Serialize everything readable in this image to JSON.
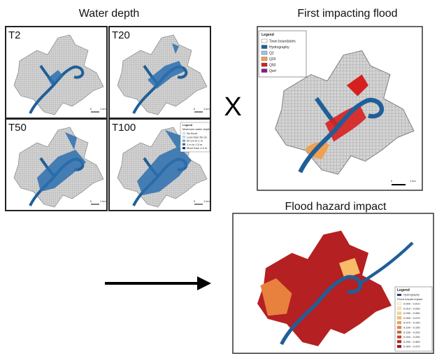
{
  "water_depth": {
    "title": "Water depth",
    "panels": [
      "T2",
      "T20",
      "T50",
      "T100"
    ],
    "legend": {
      "title": "Legend",
      "subtitle": "Maximum water depth",
      "items": [
        {
          "label": "No flood",
          "color": "#e6e6e6"
        },
        {
          "label": "Less than 50 cm",
          "color": "#c6dbef"
        },
        {
          "label": "50 cm to 1 m",
          "color": "#6baed6"
        },
        {
          "label": "1 m to 1.5 m",
          "color": "#2171b5"
        },
        {
          "label": "More than 1.5 m",
          "color": "#08306b"
        }
      ]
    },
    "scale": [
      "0",
      "1 km"
    ]
  },
  "operator": "X",
  "first_impacting_flood": {
    "title": "First impacting flood",
    "legend": {
      "title": "Legend",
      "items": [
        {
          "label": "Town boundaries",
          "color": "#ffffff"
        },
        {
          "label": "Hydrography",
          "color": "#1f5f99"
        },
        {
          "label": "Q2",
          "color": "#9ec3e6"
        },
        {
          "label": "Q20",
          "color": "#f0a050"
        },
        {
          "label": "Q50",
          "color": "#d62020"
        },
        {
          "label": "Qref",
          "color": "#8b1a8b"
        }
      ]
    },
    "scale": [
      "0",
      "1 km"
    ]
  },
  "flood_hazard_impact": {
    "title": "Flood hazard impact",
    "legend": {
      "title": "Legend",
      "hydrography": "Hydrography",
      "subtitle": "Flood hazard impact",
      "items": [
        {
          "label": "0.000 - 0.010",
          "color": "#fff5d6"
        },
        {
          "label": "0.010 - 0.030",
          "color": "#fde6a8"
        },
        {
          "label": "0.030 - 0.050",
          "color": "#fbd38a"
        },
        {
          "label": "0.050 - 0.070",
          "color": "#f7bb6a"
        },
        {
          "label": "0.070 - 0.100",
          "color": "#f19f50"
        },
        {
          "label": "0.100 - 0.150",
          "color": "#e8803e"
        },
        {
          "label": "0.150 - 0.200",
          "color": "#dc5f30"
        },
        {
          "label": "0.200 - 0.250",
          "color": "#cc3d27"
        },
        {
          "label": "0.250 - 0.300",
          "color": "#b52022"
        },
        {
          "label": "0.300 - 0.370",
          "color": "#96101e"
        }
      ]
    }
  }
}
